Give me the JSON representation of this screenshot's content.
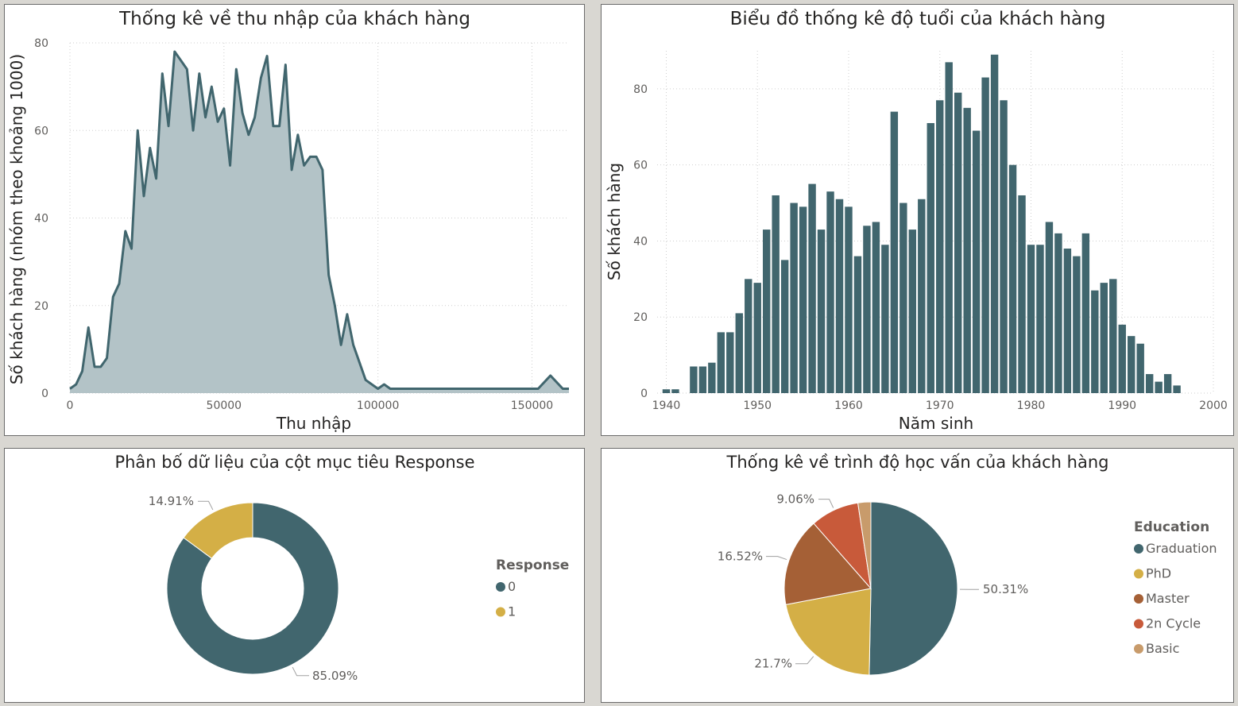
{
  "chart_data": [
    {
      "type": "area",
      "title": "Thống kê về thu nhập của khách hàng",
      "xlabel": "Thu nhập",
      "ylabel": "Số khách hàng (nhóm theo khoảng 1000)",
      "xlim": [
        0,
        162000
      ],
      "ylim": [
        0,
        80
      ],
      "x_ticks": [
        0,
        50000,
        100000,
        150000
      ],
      "y_ticks": [
        0,
        20,
        40,
        60,
        80
      ],
      "x_tick_labels": [
        "0",
        "50000",
        "100000",
        "150000"
      ],
      "y_tick_labels": [
        "0",
        "20",
        "40",
        "60",
        "80"
      ],
      "grid": true,
      "colors": {
        "line": "#41666e",
        "fill": "#b3c3c7"
      },
      "x": [
        0,
        2000,
        4000,
        6000,
        8000,
        10000,
        12000,
        14000,
        16000,
        18000,
        20000,
        22000,
        24000,
        26000,
        28000,
        30000,
        32000,
        34000,
        36000,
        38000,
        40000,
        42000,
        44000,
        46000,
        48000,
        50000,
        52000,
        54000,
        56000,
        58000,
        60000,
        62000,
        64000,
        66000,
        68000,
        70000,
        72000,
        74000,
        76000,
        78000,
        80000,
        82000,
        84000,
        86000,
        88000,
        90000,
        92000,
        94000,
        96000,
        98000,
        100000,
        102000,
        104000,
        150000,
        152000,
        156000,
        160000,
        162000
      ],
      "values": [
        1,
        2,
        5,
        15,
        6,
        6,
        8,
        22,
        25,
        37,
        33,
        60,
        45,
        56,
        49,
        73,
        61,
        78,
        76,
        74,
        60,
        73,
        63,
        70,
        62,
        65,
        52,
        74,
        64,
        59,
        63,
        72,
        77,
        61,
        61,
        75,
        51,
        59,
        52,
        54,
        54,
        51,
        27,
        20,
        11,
        18,
        11,
        7,
        3,
        2,
        1,
        2,
        1,
        1,
        1,
        4,
        1,
        1
      ]
    },
    {
      "type": "bar",
      "title": "Biểu đồ thống kê độ tuổi của khách hàng",
      "xlabel": "Năm sinh",
      "ylabel": "Số khách hàng",
      "xlim": [
        1939,
        2000
      ],
      "ylim": [
        0,
        90
      ],
      "x_ticks": [
        1940,
        1950,
        1960,
        1970,
        1980,
        1990,
        2000
      ],
      "y_ticks": [
        0,
        20,
        40,
        60,
        80
      ],
      "x_tick_labels": [
        "1940",
        "1950",
        "1960",
        "1970",
        "1980",
        "1990",
        "2000"
      ],
      "y_tick_labels": [
        "0",
        "20",
        "40",
        "60",
        "80"
      ],
      "grid": true,
      "colors": {
        "bar": "#41666e"
      },
      "x": [
        1940,
        1941,
        1943,
        1944,
        1945,
        1946,
        1947,
        1948,
        1949,
        1950,
        1951,
        1952,
        1953,
        1954,
        1955,
        1956,
        1957,
        1958,
        1959,
        1960,
        1961,
        1962,
        1963,
        1964,
        1965,
        1966,
        1967,
        1968,
        1969,
        1970,
        1971,
        1972,
        1973,
        1974,
        1975,
        1976,
        1977,
        1978,
        1979,
        1980,
        1981,
        1982,
        1983,
        1984,
        1985,
        1986,
        1987,
        1988,
        1989,
        1990,
        1991,
        1992,
        1993,
        1994,
        1995,
        1996
      ],
      "values": [
        1,
        1,
        7,
        7,
        8,
        16,
        16,
        21,
        30,
        29,
        43,
        52,
        35,
        50,
        49,
        55,
        43,
        53,
        51,
        49,
        36,
        44,
        45,
        39,
        74,
        50,
        43,
        51,
        71,
        77,
        87,
        79,
        75,
        69,
        83,
        89,
        77,
        60,
        52,
        39,
        39,
        45,
        42,
        38,
        36,
        42,
        27,
        29,
        30,
        18,
        15,
        13,
        5,
        3,
        5,
        2
      ]
    },
    {
      "type": "pie",
      "subtype": "donut",
      "title": "Phân bố dữ liệu của cột mục tiêu Response",
      "legend_title": "Response",
      "legend_position": "right",
      "categories": [
        "0",
        "1"
      ],
      "values": [
        85.09,
        14.91
      ],
      "labels": [
        "85.09%",
        "14.91%"
      ],
      "colors": [
        "#41666e",
        "#d4af46"
      ]
    },
    {
      "type": "pie",
      "title": "Thống kê về trình độ học vấn của khách hàng",
      "legend_title": "Education",
      "legend_position": "right",
      "categories": [
        "Graduation",
        "PhD",
        "Master",
        "2n Cycle",
        "Basic"
      ],
      "values": [
        50.31,
        21.7,
        16.52,
        9.06,
        2.41
      ],
      "labels": [
        "50.31%",
        "21.7%",
        "16.52%",
        "9.06%",
        ""
      ],
      "colors": [
        "#41666e",
        "#d4af46",
        "#a56036",
        "#c85a3a",
        "#c89b6b"
      ]
    }
  ]
}
